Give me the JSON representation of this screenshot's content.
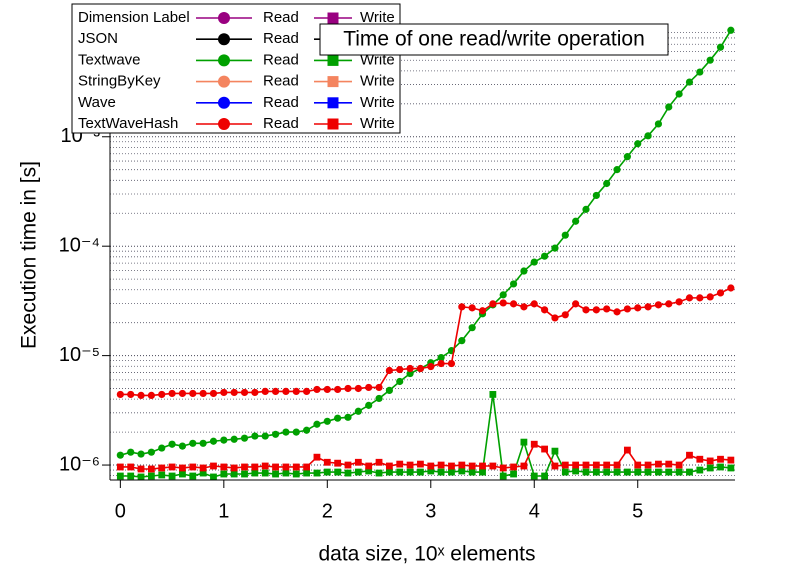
{
  "chart_data": {
    "type": "line",
    "title": "Time of one read/write operation",
    "xlabel": "data size, 10ˣ elements",
    "ylabel": "Execution time  in [s]",
    "ylog": true,
    "grid": true,
    "xlim": [
      -0.1,
      5.94
    ],
    "ylim": [
      7.3e-07,
      0.016
    ],
    "xticks": [
      0,
      1,
      2,
      3,
      4,
      5
    ],
    "yticks": [
      {
        "value": 1e-06,
        "label": "10⁻⁶"
      },
      {
        "value": 1e-05,
        "label": "10⁻⁵"
      },
      {
        "value": 0.0001,
        "label": "10⁻⁴"
      },
      {
        "value": 0.001,
        "label": "10⁻³"
      }
    ],
    "legend": {
      "position": "top-left",
      "rows": [
        {
          "label": "Dimension Label",
          "color": "#990080",
          "entries": [
            "Read",
            "Write"
          ]
        },
        {
          "label": "JSON",
          "color": "#000000",
          "entries": [
            "Read",
            "Write"
          ]
        },
        {
          "label": "Textwave",
          "color": "#00a000",
          "entries": [
            "Read",
            "Write"
          ]
        },
        {
          "label": "StringByKey",
          "color": "#f4845f",
          "entries": [
            "Read",
            "Write"
          ]
        },
        {
          "label": "Wave",
          "color": "#0000ff",
          "entries": [
            "Read",
            "Write"
          ]
        },
        {
          "label": "TextWaveHash",
          "color": "#ee0000",
          "entries": [
            "Read",
            "Write"
          ]
        }
      ]
    },
    "x": [
      0,
      0.1,
      0.2,
      0.3,
      0.4,
      0.5,
      0.6,
      0.7,
      0.8,
      0.9,
      1,
      1.1,
      1.2,
      1.3,
      1.4,
      1.5,
      1.6,
      1.7,
      1.8,
      1.9,
      2,
      2.1,
      2.2,
      2.3,
      2.4,
      2.5,
      2.6,
      2.7,
      2.8,
      2.9,
      3,
      3.1,
      3.2,
      3.3,
      3.4,
      3.5,
      3.6,
      3.7,
      3.8,
      3.9,
      4,
      4.1,
      4.2,
      4.3,
      4.4,
      4.5,
      4.6,
      4.7,
      4.8,
      4.9,
      5,
      5.1,
      5.2,
      5.3,
      5.4,
      5.5,
      5.6,
      5.7,
      5.8,
      5.9
    ],
    "series": [
      {
        "legend_row": 2,
        "marker": "square",
        "values": [
          7.94e-07,
          7.94e-07,
          7.78e-07,
          7.94e-07,
          8.11e-07,
          7.94e-07,
          8.28e-07,
          7.94e-07,
          8.45e-07,
          7.78e-07,
          8.28e-07,
          8.28e-07,
          8.28e-07,
          8.45e-07,
          8.45e-07,
          8.28e-07,
          8.45e-07,
          8.28e-07,
          8.45e-07,
          8.45e-07,
          8.63e-07,
          8.63e-07,
          8.45e-07,
          8.63e-07,
          8.82e-07,
          8.45e-07,
          8.63e-07,
          8.63e-07,
          8.63e-07,
          8.63e-07,
          8.82e-07,
          8.63e-07,
          8.63e-07,
          8.82e-07,
          8.63e-07,
          8.63e-07,
          4.42e-06,
          7.94e-07,
          8.28e-07,
          1.62e-06,
          7.94e-07,
          7.94e-07,
          1.34e-06,
          8.63e-07,
          8.82e-07,
          8.63e-07,
          8.63e-07,
          8.63e-07,
          8.63e-07,
          8.63e-07,
          8.63e-07,
          8.63e-07,
          8.63e-07,
          8.63e-07,
          8.63e-07,
          8.63e-07,
          9e-07,
          9.4e-07,
          9.6e-07,
          9.4e-07
        ]
      },
      {
        "legend_row": 5,
        "marker": "square",
        "values": [
          9.6e-07,
          9.6e-07,
          9.2e-07,
          9.2e-07,
          9.4e-07,
          9.6e-07,
          9.4e-07,
          9.6e-07,
          9.4e-07,
          9.8e-07,
          9.6e-07,
          9.4e-07,
          9.6e-07,
          9.6e-07,
          9.8e-07,
          9.6e-07,
          9.6e-07,
          9.6e-07,
          9.6e-07,
          1.18e-06,
          1.06e-06,
          1.04e-06,
          1e-06,
          1.06e-06,
          9.8e-07,
          1.06e-06,
          9.8e-07,
          1.02e-06,
          1e-06,
          1.02e-06,
          9.8e-07,
          1e-06,
          9.8e-07,
          1e-06,
          9.8e-07,
          9.8e-07,
          9.8e-07,
          9.4e-07,
          9.6e-07,
          9.8e-07,
          1.55e-06,
          1.4e-06,
          9.8e-07,
          1e-06,
          1e-06,
          1e-06,
          1e-06,
          1e-06,
          1e-06,
          1.37e-06,
          1e-06,
          1e-06,
          1.02e-06,
          1.02e-06,
          1e-06,
          1.23e-06,
          1.13e-06,
          1.09e-06,
          1.13e-06,
          1.11e-06
        ]
      },
      {
        "legend_row": 2,
        "marker": "circle",
        "values": [
          1.23e-06,
          1.31e-06,
          1.26e-06,
          1.31e-06,
          1.43e-06,
          1.55e-06,
          1.49e-06,
          1.58e-06,
          1.58e-06,
          1.65e-06,
          1.69e-06,
          1.72e-06,
          1.76e-06,
          1.84e-06,
          1.84e-06,
          1.91e-06,
          2e-06,
          2e-06,
          2.08e-06,
          2.36e-06,
          2.51e-06,
          2.68e-06,
          2.73e-06,
          3.1e-06,
          3.51e-06,
          4.06e-06,
          4.81e-06,
          5.8e-06,
          6.86e-06,
          7.62e-06,
          8.6e-06,
          9.6e-06,
          1.11e-05,
          1.37e-05,
          1.8e-05,
          2.41e-05,
          2.91e-05,
          3.59e-05,
          4.52e-05,
          5.93e-05,
          7.16e-05,
          8.1e-05,
          9.6e-05,
          0.000126,
          0.000169,
          0.000217,
          0.000291,
          0.000374,
          0.000501,
          0.000658,
          0.000863,
          0.00102,
          0.00131,
          0.00187,
          0.00246,
          0.00316,
          0.0039,
          0.00501,
          0.00658,
          0.0094
        ]
      },
      {
        "legend_row": 5,
        "marker": "circle",
        "values": [
          4.42e-06,
          4.42e-06,
          4.33e-06,
          4.33e-06,
          4.42e-06,
          4.51e-06,
          4.51e-06,
          4.51e-06,
          4.51e-06,
          4.51e-06,
          4.61e-06,
          4.61e-06,
          4.61e-06,
          4.61e-06,
          4.71e-06,
          4.71e-06,
          4.71e-06,
          4.71e-06,
          4.71e-06,
          4.91e-06,
          4.91e-06,
          4.91e-06,
          5.01e-06,
          5.01e-06,
          5.12e-06,
          5.12e-06,
          7.31e-06,
          7.46e-06,
          7.62e-06,
          7.62e-06,
          7.94e-06,
          8.46e-06,
          8.46e-06,
          2.79e-05,
          2.73e-05,
          2.57e-05,
          2.97e-05,
          3.03e-05,
          2.97e-05,
          2.79e-05,
          2.97e-05,
          2.62e-05,
          2.21e-05,
          2.36e-05,
          2.97e-05,
          2.62e-05,
          2.62e-05,
          2.67e-05,
          2.51e-05,
          2.67e-05,
          2.73e-05,
          2.79e-05,
          2.91e-05,
          2.97e-05,
          3.1e-05,
          3.37e-05,
          3.37e-05,
          3.44e-05,
          3.74e-05,
          4.15e-05
        ]
      }
    ]
  }
}
